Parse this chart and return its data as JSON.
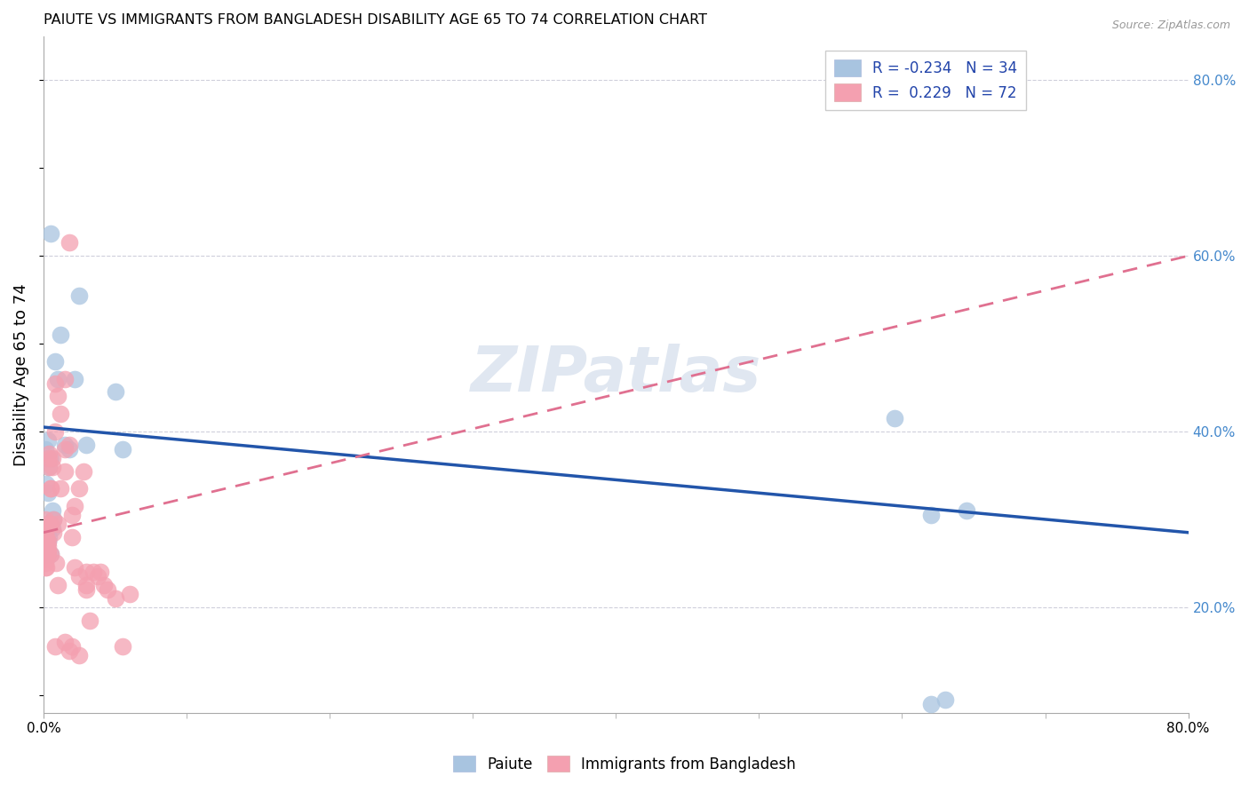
{
  "title": "PAIUTE VS IMMIGRANTS FROM BANGLADESH DISABILITY AGE 65 TO 74 CORRELATION CHART",
  "source": "Source: ZipAtlas.com",
  "ylabel": "Disability Age 65 to 74",
  "legend_label1": "Paiute",
  "legend_label2": "Immigrants from Bangladesh",
  "r1": -0.234,
  "n1": 34,
  "r2": 0.229,
  "n2": 72,
  "color1": "#a8c4e0",
  "color2": "#f4a0b0",
  "line_color1": "#2255aa",
  "line_color2": "#e07090",
  "xlim": [
    0.0,
    0.8
  ],
  "ylim": [
    0.08,
    0.85
  ],
  "yticks": [
    0.2,
    0.4,
    0.6,
    0.8
  ],
  "paiute_x": [
    0.001,
    0.002,
    0.003,
    0.004,
    0.005,
    0.006,
    0.007,
    0.002,
    0.003,
    0.001,
    0.002,
    0.003,
    0.001,
    0.002,
    0.003,
    0.004,
    0.005,
    0.006,
    0.008,
    0.01,
    0.012,
    0.015,
    0.018,
    0.022,
    0.025,
    0.03,
    0.05,
    0.055,
    0.005,
    0.595,
    0.62,
    0.645,
    0.62,
    0.63
  ],
  "paiute_y": [
    0.38,
    0.37,
    0.39,
    0.36,
    0.37,
    0.31,
    0.3,
    0.34,
    0.33,
    0.295,
    0.28,
    0.275,
    0.265,
    0.26,
    0.295,
    0.28,
    0.26,
    0.29,
    0.48,
    0.46,
    0.51,
    0.385,
    0.38,
    0.46,
    0.555,
    0.385,
    0.445,
    0.38,
    0.625,
    0.415,
    0.305,
    0.31,
    0.09,
    0.095
  ],
  "bd_x": [
    0.0,
    0.0,
    0.0,
    0.0,
    0.0,
    0.001,
    0.001,
    0.001,
    0.001,
    0.001,
    0.001,
    0.001,
    0.002,
    0.002,
    0.002,
    0.002,
    0.002,
    0.002,
    0.002,
    0.003,
    0.003,
    0.003,
    0.003,
    0.003,
    0.004,
    0.004,
    0.004,
    0.005,
    0.005,
    0.005,
    0.006,
    0.006,
    0.007,
    0.007,
    0.008,
    0.008,
    0.009,
    0.01,
    0.01,
    0.012,
    0.012,
    0.015,
    0.015,
    0.015,
    0.018,
    0.018,
    0.02,
    0.02,
    0.022,
    0.022,
    0.025,
    0.025,
    0.028,
    0.03,
    0.03,
    0.032,
    0.035,
    0.038,
    0.04,
    0.042,
    0.045,
    0.05,
    0.055,
    0.06,
    0.008,
    0.015,
    0.02,
    0.018,
    0.025,
    0.03,
    0.01,
    0.005
  ],
  "bd_y": [
    0.27,
    0.265,
    0.275,
    0.26,
    0.255,
    0.285,
    0.3,
    0.29,
    0.255,
    0.26,
    0.25,
    0.245,
    0.27,
    0.28,
    0.275,
    0.265,
    0.26,
    0.255,
    0.245,
    0.275,
    0.27,
    0.265,
    0.26,
    0.295,
    0.375,
    0.37,
    0.36,
    0.335,
    0.295,
    0.26,
    0.37,
    0.36,
    0.3,
    0.285,
    0.455,
    0.4,
    0.25,
    0.44,
    0.295,
    0.335,
    0.42,
    0.38,
    0.355,
    0.46,
    0.385,
    0.615,
    0.305,
    0.28,
    0.245,
    0.315,
    0.235,
    0.335,
    0.355,
    0.24,
    0.22,
    0.185,
    0.24,
    0.235,
    0.24,
    0.225,
    0.22,
    0.21,
    0.155,
    0.215,
    0.155,
    0.16,
    0.155,
    0.15,
    0.145,
    0.225,
    0.225,
    0.335
  ],
  "watermark": "ZIPatlas",
  "watermark_color": "#ccd8e8"
}
